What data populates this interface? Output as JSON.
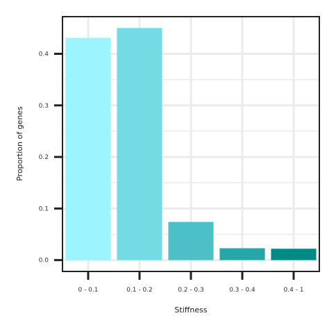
{
  "chart_data": {
    "type": "bar",
    "title": "",
    "xlabel": "Stiffness",
    "ylabel": "Proportion of genes",
    "categories": [
      "0 - 0.1",
      "0.1 - 0.2",
      "0.2 - 0.3",
      "0.3 - 0.4",
      "0.4 - 1"
    ],
    "values": [
      0.431,
      0.45,
      0.074,
      0.023,
      0.022
    ],
    "colors": [
      "#9cf4fe",
      "#72dbe4",
      "#4dbfc6",
      "#27a6a7",
      "#008b87"
    ],
    "ylim": [
      -0.022,
      0.472
    ],
    "yticks": [
      0.0,
      0.1,
      0.2,
      0.3,
      0.4
    ],
    "ytick_labels": [
      "0.0",
      "0.1",
      "0.2",
      "0.3",
      "0.4"
    ],
    "grid": true,
    "legend": "none"
  }
}
